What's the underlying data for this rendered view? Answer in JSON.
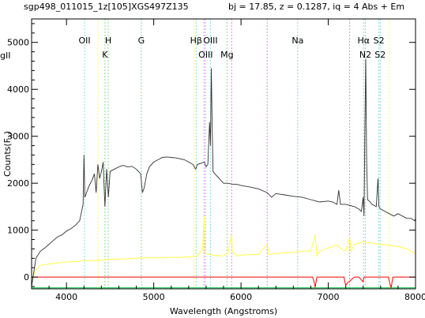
{
  "header": {
    "object_id": "sgp498_011015_1z[105]XGS497Z135",
    "info": "bj = 17.85, z = 0.1287, iq =  4 Abs + Em"
  },
  "side_fragment": "gII",
  "chart_data": {
    "type": "line",
    "title": "",
    "xlabel": "Wavelength (Angstroms)",
    "ylabel": "Counts(F",
    "ylabel_sub": "λ",
    "ylabel_close": ")",
    "xlim": [
      3600,
      8000
    ],
    "ylim": [
      -250,
      5500
    ],
    "xticks": [
      4000,
      5000,
      6000,
      7000,
      8000
    ],
    "yticks": [
      0,
      1000,
      2000,
      3000,
      4000,
      5000
    ],
    "grid": false,
    "colors": {
      "spectrum": "#333333",
      "variance": "#ffff44",
      "sky": "#ff0000",
      "zero": "#00cc44",
      "line_green": "#88dd99",
      "line_cyan": "#88dddd",
      "line_magenta": "#dd88dd"
    },
    "emission_lines": [
      {
        "label": "OII",
        "x": 4207,
        "row": 1,
        "color": "cyan"
      },
      {
        "label": "H",
        "x": 4478,
        "row": 1,
        "color": "green"
      },
      {
        "label": "K",
        "x": 4441,
        "row": 2,
        "color": "green"
      },
      {
        "label": "G",
        "x": 4858,
        "row": 1,
        "color": "green"
      },
      {
        "label": "Hβ",
        "x": 5486,
        "row": 1,
        "color": "cyan"
      },
      {
        "label": "OIII",
        "x": 5650,
        "row": 1,
        "color": "cyan"
      },
      {
        "label": "OIII",
        "x": 5595,
        "row": 2,
        "color": "cyan"
      },
      {
        "label": "Mg",
        "x": 5840,
        "row": 2,
        "color": "green"
      },
      {
        "label": "Na",
        "x": 6650,
        "row": 1,
        "color": "green"
      },
      {
        "label": "Hα",
        "x": 7405,
        "row": 1,
        "color": "cyan"
      },
      {
        "label": "S2",
        "x": 7580,
        "row": 1,
        "color": "cyan"
      },
      {
        "label": "N2",
        "x": 7425,
        "row": 2,
        "color": "cyan"
      },
      {
        "label": "S2",
        "x": 7595,
        "row": 2,
        "color": "cyan"
      }
    ],
    "sky_markers": [
      {
        "x": 4360,
        "color": "yellow"
      },
      {
        "x": 5460,
        "color": "yellow"
      },
      {
        "x": 5577,
        "color": "magenta"
      },
      {
        "x": 5893,
        "color": "magenta"
      },
      {
        "x": 6300,
        "color": "magenta"
      },
      {
        "x": 7245,
        "color": "magenta"
      },
      {
        "x": 7700,
        "color": "yellow"
      }
    ],
    "series": [
      {
        "name": "spectrum",
        "points": [
          [
            3600,
            -200
          ],
          [
            3650,
            400
          ],
          [
            3700,
            550
          ],
          [
            3750,
            620
          ],
          [
            3800,
            700
          ],
          [
            3850,
            780
          ],
          [
            3900,
            860
          ],
          [
            3950,
            900
          ],
          [
            4000,
            980
          ],
          [
            4050,
            1030
          ],
          [
            4100,
            1100
          ],
          [
            4150,
            1200
          ],
          [
            4190,
            1550
          ],
          [
            4200,
            2600
          ],
          [
            4210,
            1700
          ],
          [
            4230,
            1800
          ],
          [
            4260,
            1950
          ],
          [
            4290,
            2050
          ],
          [
            4320,
            2200
          ],
          [
            4340,
            1800
          ],
          [
            4360,
            2400
          ],
          [
            4380,
            2100
          ],
          [
            4400,
            2250
          ],
          [
            4420,
            2450
          ],
          [
            4440,
            1500
          ],
          [
            4460,
            2300
          ],
          [
            4480,
            1700
          ],
          [
            4500,
            2250
          ],
          [
            4550,
            2300
          ],
          [
            4600,
            2350
          ],
          [
            4650,
            2380
          ],
          [
            4700,
            2350
          ],
          [
            4750,
            2360
          ],
          [
            4800,
            2300
          ],
          [
            4850,
            2200
          ],
          [
            4870,
            1800
          ],
          [
            4890,
            1900
          ],
          [
            4920,
            2200
          ],
          [
            4950,
            2350
          ],
          [
            5000,
            2450
          ],
          [
            5050,
            2500
          ],
          [
            5100,
            2550
          ],
          [
            5150,
            2560
          ],
          [
            5200,
            2550
          ],
          [
            5250,
            2540
          ],
          [
            5300,
            2520
          ],
          [
            5350,
            2500
          ],
          [
            5400,
            2450
          ],
          [
            5450,
            2400
          ],
          [
            5480,
            2300
          ],
          [
            5500,
            2400
          ],
          [
            5550,
            2430
          ],
          [
            5580,
            2450
          ],
          [
            5600,
            2350
          ],
          [
            5620,
            2400
          ],
          [
            5640,
            3300
          ],
          [
            5650,
            2800
          ],
          [
            5660,
            4450
          ],
          [
            5670,
            3200
          ],
          [
            5680,
            2250
          ],
          [
            5700,
            2200
          ],
          [
            5750,
            2100
          ],
          [
            5800,
            2000
          ],
          [
            5850,
            2000
          ],
          [
            5900,
            1980
          ],
          [
            5950,
            1980
          ],
          [
            6000,
            1950
          ],
          [
            6100,
            1920
          ],
          [
            6200,
            1880
          ],
          [
            6300,
            1800
          ],
          [
            6350,
            1700
          ],
          [
            6400,
            1780
          ],
          [
            6500,
            1750
          ],
          [
            6600,
            1720
          ],
          [
            6700,
            1700
          ],
          [
            6800,
            1650
          ],
          [
            6900,
            1600
          ],
          [
            7000,
            1620
          ],
          [
            7050,
            1600
          ],
          [
            7100,
            1550
          ],
          [
            7120,
            1850
          ],
          [
            7140,
            1550
          ],
          [
            7200,
            1550
          ],
          [
            7300,
            1500
          ],
          [
            7350,
            1450
          ],
          [
            7380,
            1400
          ],
          [
            7400,
            1700
          ],
          [
            7410,
            1300
          ],
          [
            7420,
            3200
          ],
          [
            7430,
            4650
          ],
          [
            7440,
            2500
          ],
          [
            7450,
            1650
          ],
          [
            7480,
            1600
          ],
          [
            7500,
            1550
          ],
          [
            7550,
            1500
          ],
          [
            7570,
            2100
          ],
          [
            7580,
            1500
          ],
          [
            7600,
            1450
          ],
          [
            7650,
            1400
          ],
          [
            7700,
            1350
          ],
          [
            7750,
            1300
          ],
          [
            7800,
            1350
          ],
          [
            7850,
            1300
          ],
          [
            7900,
            1250
          ],
          [
            7950,
            1250
          ],
          [
            7990,
            1200
          ],
          [
            8000,
            1250
          ]
        ]
      },
      {
        "name": "variance",
        "points": [
          [
            3600,
            -50
          ],
          [
            3650,
            150
          ],
          [
            3700,
            250
          ],
          [
            3800,
            280
          ],
          [
            3900,
            300
          ],
          [
            4000,
            320
          ],
          [
            4100,
            330
          ],
          [
            4200,
            350
          ],
          [
            4300,
            350
          ],
          [
            4400,
            360
          ],
          [
            4500,
            380
          ],
          [
            4600,
            380
          ],
          [
            4700,
            390
          ],
          [
            4800,
            400
          ],
          [
            4900,
            410
          ],
          [
            5000,
            410
          ],
          [
            5100,
            410
          ],
          [
            5200,
            420
          ],
          [
            5300,
            420
          ],
          [
            5400,
            430
          ],
          [
            5500,
            450
          ],
          [
            5560,
            600
          ],
          [
            5577,
            1300
          ],
          [
            5590,
            500
          ],
          [
            5650,
            480
          ],
          [
            5700,
            460
          ],
          [
            5800,
            450
          ],
          [
            5850,
            520
          ],
          [
            5893,
            900
          ],
          [
            5900,
            550
          ],
          [
            5950,
            450
          ],
          [
            6000,
            470
          ],
          [
            6100,
            480
          ],
          [
            6200,
            480
          ],
          [
            6300,
            700
          ],
          [
            6320,
            480
          ],
          [
            6400,
            500
          ],
          [
            6500,
            520
          ],
          [
            6600,
            530
          ],
          [
            6700,
            550
          ],
          [
            6800,
            560
          ],
          [
            6850,
            900
          ],
          [
            6870,
            450
          ],
          [
            6900,
            550
          ],
          [
            7000,
            620
          ],
          [
            7100,
            680
          ],
          [
            7150,
            600
          ],
          [
            7200,
            550
          ],
          [
            7245,
            850
          ],
          [
            7260,
            550
          ],
          [
            7300,
            700
          ],
          [
            7400,
            750
          ],
          [
            7500,
            720
          ],
          [
            7600,
            700
          ],
          [
            7700,
            680
          ],
          [
            7800,
            650
          ],
          [
            7900,
            600
          ],
          [
            8000,
            500
          ]
        ]
      },
      {
        "name": "sky",
        "points": [
          [
            3600,
            0
          ],
          [
            6820,
            0
          ],
          [
            6840,
            -120
          ],
          [
            6850,
            -220
          ],
          [
            6860,
            -100
          ],
          [
            6870,
            0
          ],
          [
            7180,
            0
          ],
          [
            7200,
            -180
          ],
          [
            7220,
            -120
          ],
          [
            7250,
            -80
          ],
          [
            7280,
            -30
          ],
          [
            7300,
            0
          ],
          [
            7350,
            0
          ],
          [
            7380,
            -60
          ],
          [
            7400,
            -100
          ],
          [
            7410,
            0
          ],
          [
            7690,
            0
          ],
          [
            7700,
            -100
          ],
          [
            7720,
            -230
          ],
          [
            7740,
            0
          ],
          [
            8000,
            0
          ]
        ]
      },
      {
        "name": "zero",
        "points": [
          [
            3600,
            -230
          ],
          [
            8000,
            -230
          ]
        ]
      }
    ]
  }
}
